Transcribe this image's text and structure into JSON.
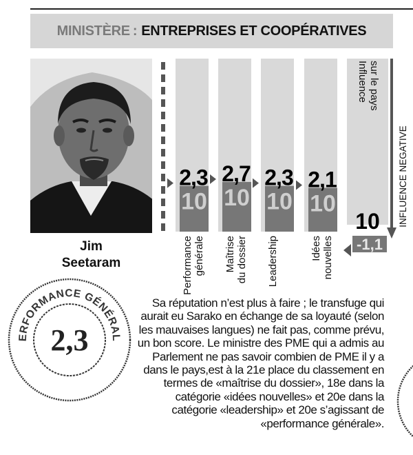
{
  "ministry": {
    "label": "MINISTÈRE",
    "separator": ":",
    "name": "ENTREPRISES ET COOPÉRATIVES"
  },
  "person": {
    "first_name": "Jim",
    "last_name": "Seetaram"
  },
  "chart_data": {
    "type": "bar",
    "categories": [
      "Performance générale",
      "Maîtrise du dossier",
      "Leadership",
      "Idées nouvelles",
      "Influence sur le pays"
    ],
    "values": [
      2.3,
      2.7,
      2.3,
      2.1,
      -1.1
    ],
    "value_labels": [
      "2,3",
      "2,7",
      "2,3",
      "2,1",
      "-1,1"
    ],
    "max_labels": [
      "10",
      "10",
      "10",
      "10",
      "10"
    ],
    "ylim": [
      0,
      10
    ],
    "axis_note": "INFLUENCE NEGATIVE"
  },
  "stamp": {
    "ring_text": "PERFORMANCE GÉNÉRALE",
    "value": "2,3"
  },
  "article": {
    "text": "Sa réputation n’est plus à faire ; le transfuge qui aurait eu Sarako en échange de sa loyauté (selon les mauvaises langues) ne fait pas, comme prévu, un bon score. Le ministre des PME qui a admis au Parlement ne pas savoir combien de PME il y a dans le pays,est à la 21e place du classement en termes de «maîtrise du dossier», 18e dans la catégorie «idées nouvelles» et 20e dans la catégorie «leadership» et 20e s’agissant de «performance générale»."
  },
  "colors": {
    "banner_bg": "#d6d6d6",
    "column_bg": "#d9d9d9",
    "tile": "#777777",
    "tick": "#555555",
    "text": "#111111"
  }
}
